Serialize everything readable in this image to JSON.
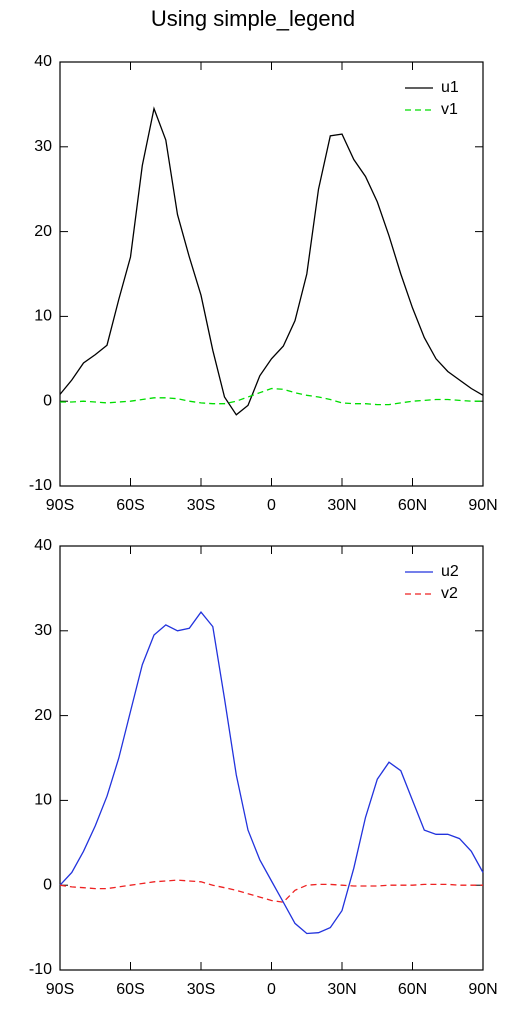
{
  "chart_data": [
    {
      "type": "line",
      "title": "Using simple_legend",
      "legend": "upper right",
      "x": [
        -90,
        -85,
        -80,
        -75,
        -70,
        -65,
        -60,
        -55,
        -50,
        -45,
        -40,
        -35,
        -30,
        -25,
        -20,
        -15,
        -10,
        -5,
        0,
        5,
        10,
        15,
        20,
        25,
        30,
        35,
        40,
        45,
        50,
        55,
        60,
        65,
        70,
        75,
        80,
        85,
        90
      ],
      "series": [
        {
          "name": "u1",
          "color": "#000000",
          "dash": false,
          "values": [
            0.8,
            2.5,
            4.5,
            5.5,
            6.6,
            12,
            17,
            27.8,
            34.5,
            30.8,
            22,
            17,
            12.5,
            6,
            0.5,
            -1.6,
            -0.5,
            3,
            5,
            6.5,
            9.5,
            15,
            25,
            31.3,
            31.5,
            28.5,
            26.5,
            23.5,
            19.5,
            15,
            11,
            7.5,
            5,
            3.5,
            2.5,
            1.5,
            0.7
          ]
        },
        {
          "name": "v1",
          "color": "#00dd00",
          "dash": true,
          "values": [
            -0.1,
            -0.1,
            0,
            -0.1,
            -0.2,
            -0.1,
            0,
            0.2,
            0.4,
            0.4,
            0.3,
            0,
            -0.2,
            -0.3,
            -0.3,
            0,
            0.5,
            1.0,
            1.5,
            1.4,
            1.0,
            0.7,
            0.5,
            0.2,
            -0.2,
            -0.3,
            -0.3,
            -0.4,
            -0.4,
            -0.2,
            0,
            0.1,
            0.2,
            0.2,
            0.1,
            0,
            0
          ]
        }
      ],
      "xlim": [
        -90,
        90
      ],
      "xticks": [
        {
          "value": -90,
          "label": "90S"
        },
        {
          "value": -60,
          "label": "60S"
        },
        {
          "value": -30,
          "label": "30S"
        },
        0,
        {
          "value": 30,
          "label": "30N"
        },
        {
          "value": 60,
          "label": "60N"
        },
        {
          "value": 90,
          "label": "90N"
        }
      ],
      "ylim": [
        -10,
        40
      ],
      "yticks": [
        -10,
        0,
        10,
        20,
        30,
        40
      ]
    },
    {
      "type": "line",
      "legend": "upper right",
      "x": [
        -90,
        -85,
        -80,
        -75,
        -70,
        -65,
        -60,
        -55,
        -50,
        -45,
        -40,
        -35,
        -30,
        -25,
        -20,
        -15,
        -10,
        -5,
        0,
        5,
        10,
        15,
        20,
        25,
        30,
        35,
        40,
        45,
        50,
        55,
        60,
        65,
        70,
        75,
        80,
        85,
        90
      ],
      "series": [
        {
          "name": "u2",
          "color": "#2233dd",
          "dash": false,
          "values": [
            0,
            1.5,
            4,
            7,
            10.5,
            15,
            20.5,
            26,
            29.5,
            30.7,
            30,
            30.3,
            32.2,
            30.5,
            22,
            13,
            6.5,
            3,
            0.5,
            -2,
            -4.5,
            -5.7,
            -5.6,
            -5,
            -3,
            2,
            8,
            12.5,
            14.5,
            13.5,
            10,
            6.5,
            6,
            6,
            5.5,
            4,
            1.5
          ]
        },
        {
          "name": "v2",
          "color": "#ee2222",
          "dash": true,
          "values": [
            0,
            -0.2,
            -0.3,
            -0.4,
            -0.4,
            -0.2,
            0,
            0.2,
            0.4,
            0.5,
            0.6,
            0.5,
            0.4,
            0,
            -0.3,
            -0.6,
            -1,
            -1.4,
            -1.8,
            -2,
            -0.6,
            0,
            0.1,
            0.1,
            0,
            -0.1,
            -0.1,
            -0.1,
            0,
            0,
            0,
            0.1,
            0.1,
            0.1,
            0,
            0,
            0
          ]
        }
      ],
      "xlim": [
        -90,
        90
      ],
      "xticks": [
        {
          "value": -90,
          "label": "90S"
        },
        {
          "value": -60,
          "label": "60S"
        },
        {
          "value": -30,
          "label": "30S"
        },
        0,
        {
          "value": 30,
          "label": "30N"
        },
        {
          "value": 60,
          "label": "60N"
        },
        {
          "value": 90,
          "label": "90N"
        }
      ],
      "ylim": [
        -10,
        40
      ],
      "yticks": [
        -10,
        0,
        10,
        20,
        30,
        40
      ]
    }
  ]
}
